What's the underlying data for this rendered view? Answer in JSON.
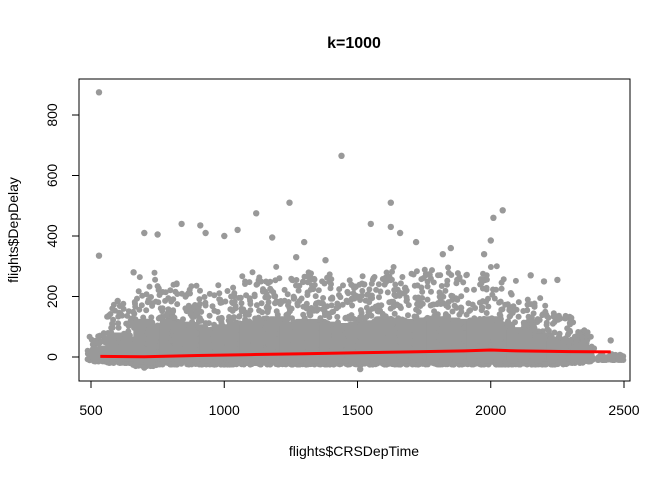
{
  "chart_data": {
    "type": "scatter",
    "title": "k=1000",
    "xlabel": "flights$CRSDepTime",
    "ylabel": "flights$DepDelay",
    "xlim": [
      500,
      2500
    ],
    "ylim": [
      -50,
      900
    ],
    "x_ticks": [
      "500",
      "1000",
      "1500",
      "2000",
      "2500"
    ],
    "y_ticks": [
      "0",
      "200",
      "400",
      "600",
      "800"
    ],
    "point_color": "#999999",
    "line_color": "#ff0000",
    "grid": false,
    "legend": "none",
    "series": [
      {
        "style": "points",
        "clusters": [
          {
            "x": 535,
            "y_low": -15,
            "y_high": 80
          },
          {
            "x": 600,
            "y_low": -20,
            "y_high": 180
          },
          {
            "x": 650,
            "y_low": -20,
            "y_high": 150
          },
          {
            "x": 700,
            "y_low": -30,
            "y_high": 280
          },
          {
            "x": 750,
            "y_low": -20,
            "y_high": 240
          },
          {
            "x": 800,
            "y_low": -25,
            "y_high": 280
          },
          {
            "x": 850,
            "y_low": -25,
            "y_high": 260
          },
          {
            "x": 900,
            "y_low": -20,
            "y_high": 240
          },
          {
            "x": 950,
            "y_low": -25,
            "y_high": 220
          },
          {
            "x": 1000,
            "y_low": -25,
            "y_high": 240
          },
          {
            "x": 1050,
            "y_low": -25,
            "y_high": 260
          },
          {
            "x": 1100,
            "y_low": -20,
            "y_high": 270
          },
          {
            "x": 1150,
            "y_low": -25,
            "y_high": 290
          },
          {
            "x": 1200,
            "y_low": -25,
            "y_high": 300
          },
          {
            "x": 1250,
            "y_low": -25,
            "y_high": 260
          },
          {
            "x": 1300,
            "y_low": -25,
            "y_high": 280
          },
          {
            "x": 1350,
            "y_low": -25,
            "y_high": 280
          },
          {
            "x": 1400,
            "y_low": -25,
            "y_high": 260
          },
          {
            "x": 1450,
            "y_low": -25,
            "y_high": 250
          },
          {
            "x": 1500,
            "y_low": -25,
            "y_high": 260
          },
          {
            "x": 1550,
            "y_low": -20,
            "y_high": 270
          },
          {
            "x": 1600,
            "y_low": -25,
            "y_high": 300
          },
          {
            "x": 1650,
            "y_low": -25,
            "y_high": 290
          },
          {
            "x": 1700,
            "y_low": -25,
            "y_high": 280
          },
          {
            "x": 1750,
            "y_low": -25,
            "y_high": 290
          },
          {
            "x": 1800,
            "y_low": -25,
            "y_high": 300
          },
          {
            "x": 1850,
            "y_low": -25,
            "y_high": 290
          },
          {
            "x": 1900,
            "y_low": -25,
            "y_high": 280
          },
          {
            "x": 1950,
            "y_low": -25,
            "y_high": 290
          },
          {
            "x": 2000,
            "y_low": -25,
            "y_high": 300
          },
          {
            "x": 2050,
            "y_low": -25,
            "y_high": 260
          },
          {
            "x": 2100,
            "y_low": -25,
            "y_high": 220
          },
          {
            "x": 2150,
            "y_low": -25,
            "y_high": 200
          },
          {
            "x": 2200,
            "y_low": -25,
            "y_high": 170
          },
          {
            "x": 2250,
            "y_low": -25,
            "y_high": 150
          },
          {
            "x": 2300,
            "y_low": -20,
            "y_high": 130
          },
          {
            "x": 2340,
            "y_low": -15,
            "y_high": 90
          },
          {
            "x": 2450,
            "y_low": -10,
            "y_high": 10
          }
        ],
        "outliers": [
          {
            "x": 530,
            "y": 875
          },
          {
            "x": 1440,
            "y": 665
          },
          {
            "x": 530,
            "y": 335
          },
          {
            "x": 1625,
            "y": 510
          },
          {
            "x": 1245,
            "y": 510
          },
          {
            "x": 2045,
            "y": 485
          },
          {
            "x": 1120,
            "y": 475
          },
          {
            "x": 2010,
            "y": 460
          },
          {
            "x": 1550,
            "y": 440
          },
          {
            "x": 840,
            "y": 440
          },
          {
            "x": 910,
            "y": 435
          },
          {
            "x": 1625,
            "y": 430
          },
          {
            "x": 1050,
            "y": 420
          },
          {
            "x": 700,
            "y": 410
          },
          {
            "x": 750,
            "y": 405
          },
          {
            "x": 1660,
            "y": 410
          },
          {
            "x": 1000,
            "y": 400
          },
          {
            "x": 1180,
            "y": 395
          },
          {
            "x": 1300,
            "y": 380
          },
          {
            "x": 1720,
            "y": 380
          },
          {
            "x": 2000,
            "y": 385
          },
          {
            "x": 1525,
            "y": 240
          },
          {
            "x": 2150,
            "y": 270
          },
          {
            "x": 2250,
            "y": 255
          },
          {
            "x": 2200,
            "y": 250
          },
          {
            "x": 2450,
            "y": 55
          },
          {
            "x": 1510,
            "y": -40
          },
          {
            "x": 700,
            "y": -35
          },
          {
            "x": 600,
            "y": 185
          },
          {
            "x": 660,
            "y": 280
          },
          {
            "x": 1380,
            "y": 320
          },
          {
            "x": 1850,
            "y": 360
          },
          {
            "x": 930,
            "y": 410
          },
          {
            "x": 1820,
            "y": 340
          },
          {
            "x": 1270,
            "y": 330
          },
          {
            "x": 1975,
            "y": 340
          }
        ]
      },
      {
        "style": "line",
        "x": [
          535,
          700,
          900,
          1100,
          1300,
          1500,
          1700,
          1900,
          2000,
          2100,
          2300,
          2450
        ],
        "y": [
          2,
          1,
          5,
          8,
          11,
          14,
          17,
          20,
          23,
          20,
          18,
          17
        ]
      }
    ]
  }
}
